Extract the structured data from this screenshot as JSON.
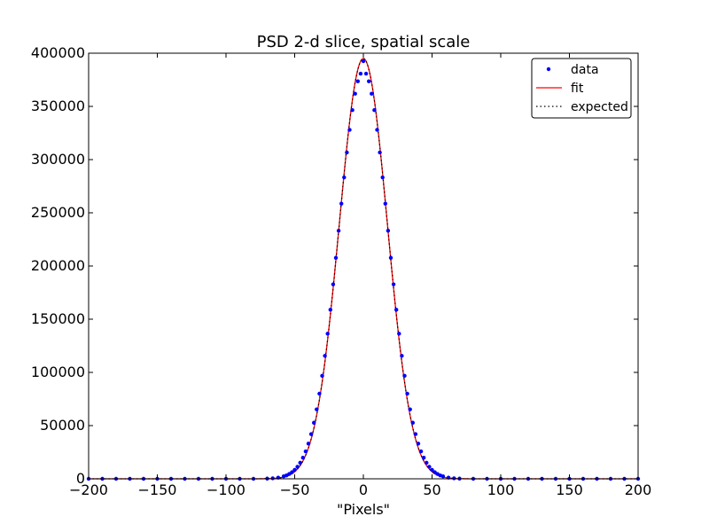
{
  "chart_data": {
    "type": "line",
    "title": "PSD 2-d slice, spatial scale",
    "xlabel": "\"Pixels\"",
    "ylabel": "",
    "xlim": [
      -200,
      200
    ],
    "ylim": [
      0,
      400000
    ],
    "x_ticks": [
      -200,
      -150,
      -100,
      -50,
      0,
      50,
      100,
      150,
      200
    ],
    "y_ticks": [
      0,
      50000,
      100000,
      150000,
      200000,
      250000,
      300000,
      350000,
      400000
    ],
    "x_tick_labels": [
      "−200",
      "−150",
      "−100",
      "−50",
      "0",
      "50",
      "100",
      "150",
      "200"
    ],
    "y_tick_labels": [
      "0",
      "50000",
      "100000",
      "150000",
      "200000",
      "250000",
      "300000",
      "350000",
      "400000"
    ],
    "grid": false,
    "legend_position": "top-right",
    "series": [
      {
        "name": "data",
        "style": "points",
        "color": "#0000ff",
        "x": [
          -200,
          -190,
          -180,
          -170,
          -160,
          -150,
          -140,
          -130,
          -120,
          -110,
          -100,
          -90,
          -80,
          -70,
          -66,
          -62,
          -58,
          -56,
          -54,
          -52,
          -50,
          -48,
          -46,
          -44,
          -42,
          -40,
          -38,
          -36,
          -34,
          -32,
          -30,
          -28,
          -26,
          -24,
          -22,
          -20,
          -18,
          -16,
          -14,
          -12,
          -10,
          -8,
          -6,
          -4,
          -2,
          0,
          2,
          4,
          6,
          8,
          10,
          12,
          14,
          16,
          18,
          20,
          22,
          24,
          26,
          28,
          30,
          32,
          34,
          36,
          38,
          40,
          42,
          44,
          46,
          48,
          50,
          52,
          54,
          56,
          58,
          62,
          66,
          70,
          80,
          90,
          100,
          110,
          120,
          130,
          140,
          150,
          160,
          170,
          180,
          190,
          200
        ],
        "y": [
          0,
          0,
          0,
          0,
          0,
          0,
          0,
          0,
          0,
          0,
          0,
          0,
          0,
          200,
          500,
          1100,
          2300,
          3200,
          4500,
          6200,
          8400,
          11300,
          15100,
          19800,
          25800,
          33100,
          42000,
          52700,
          65300,
          80000,
          96800,
          115600,
          136400,
          158900,
          182800,
          207700,
          233200,
          258600,
          283300,
          306700,
          328000,
          346500,
          361900,
          373600,
          380800,
          392500,
          380800,
          373600,
          361900,
          346500,
          328000,
          306700,
          283300,
          258600,
          233200,
          207700,
          182800,
          158900,
          136400,
          115600,
          96800,
          80000,
          65300,
          52700,
          42000,
          33100,
          25800,
          19800,
          15100,
          11300,
          8400,
          6200,
          4500,
          3200,
          2300,
          1100,
          500,
          200,
          0,
          0,
          0,
          0,
          0,
          0,
          0,
          0,
          0,
          0,
          0,
          0,
          0
        ]
      },
      {
        "name": "fit",
        "style": "solid",
        "color": "#ff0000",
        "amplitude": 395000,
        "center": 0,
        "sigma": 17.5
      },
      {
        "name": "expected",
        "style": "dotted",
        "color": "#000000",
        "amplitude": 395000,
        "center": 0,
        "sigma": 17.5
      }
    ]
  }
}
